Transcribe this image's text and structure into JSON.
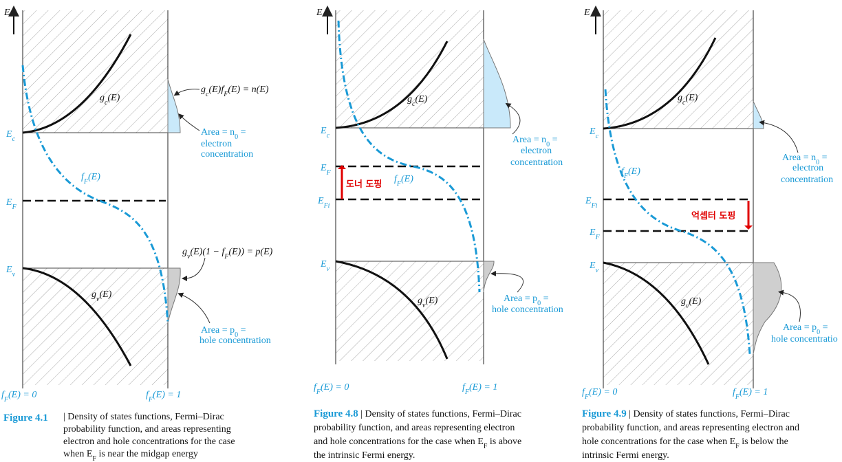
{
  "panels": [
    {
      "axis": "E",
      "gc": [
        "g",
        "c",
        "(E)"
      ],
      "n_eq": [
        "g",
        "c",
        "(E)f",
        "F",
        "(E) = n(E)"
      ],
      "area_n": [
        "Area = n",
        "0",
        " ="
      ],
      "electron": "electron",
      "electron_conc": "concentration",
      "Ec": [
        "E",
        "c"
      ],
      "fF": [
        "f",
        "F",
        "(E)"
      ],
      "EF": [
        "E",
        "F"
      ],
      "p_eq": [
        "g",
        "v",
        "(E)(1 − f",
        "F",
        "(E)) = p(E)"
      ],
      "Ev": [
        "E",
        "v"
      ],
      "gv": [
        "g",
        "v",
        "(E)"
      ],
      "area_p": [
        "Area = p",
        "0",
        " ="
      ],
      "hole_conc": "hole concentration",
      "f0": [
        "f",
        "F",
        "(E) = 0"
      ],
      "f1": [
        "f",
        "F",
        "(E) = 1"
      ],
      "caption": {
        "figure": "Figure 4.1",
        "lines": [
          "| Density of states functions, Fermi–Dirac",
          "probability function, and areas representing",
          "electron and hole concentrations for the case",
          [
            "when E",
            "F",
            " is near the midgap energy"
          ]
        ]
      }
    },
    {
      "axis": "E",
      "gc": [
        "g",
        "c",
        "(E)"
      ],
      "area_n": [
        "Area = n",
        "0",
        " ="
      ],
      "electron": "electron",
      "electron_conc": "concentration",
      "Ec": [
        "E",
        "c"
      ],
      "EF": [
        "E",
        "F"
      ],
      "doping": "도너 도핑",
      "fF": [
        "f",
        "F",
        "(E)"
      ],
      "EFi": [
        "E",
        "Fi"
      ],
      "Ev": [
        "E",
        "v"
      ],
      "gv": [
        "g",
        "v",
        "(E)"
      ],
      "area_p": [
        "Area = p",
        "0",
        " ="
      ],
      "hole_conc": "hole concentration",
      "f0": [
        "f",
        "F",
        "(E) = 0"
      ],
      "f1": [
        "f",
        "F",
        "(E) = 1"
      ],
      "caption": {
        "figure": "Figure 4.8",
        "lines": [
          " | Density of states functions, Fermi–Dirac",
          "probability function, and areas representing electron",
          [
            "and hole concentrations for the case when E",
            "F",
            " is above"
          ],
          "the intrinsic Fermi energy."
        ]
      }
    },
    {
      "axis": "E",
      "gc": [
        "g",
        "c",
        "(E)"
      ],
      "area_n": [
        "Area = n",
        "0",
        " ="
      ],
      "electron": "electron",
      "electron_conc": "concentration",
      "Ec": [
        "E",
        "c"
      ],
      "fF": [
        "f",
        "F",
        "(E)"
      ],
      "EFi": [
        "E",
        "Fi"
      ],
      "doping": "억셉터 도핑",
      "EF": [
        "E",
        "F"
      ],
      "Ev": [
        "E",
        "v"
      ],
      "gv": [
        "g",
        "v",
        "(E)"
      ],
      "area_p": [
        "Area = p",
        "0",
        " ="
      ],
      "hole_conc": "hole concentratio",
      "f0": [
        "f",
        "F",
        "(E) = 0"
      ],
      "f1": [
        "f",
        "F",
        "(E) = 1"
      ],
      "caption": {
        "figure": "Figure 4.9",
        "lines": [
          " | Density of states functions, Fermi–Dirac",
          "probability function, and areas representing electron and",
          [
            "hole concentrations for the case when E",
            "F",
            " is below the"
          ],
          "intrinsic Fermi energy."
        ]
      }
    }
  ]
}
